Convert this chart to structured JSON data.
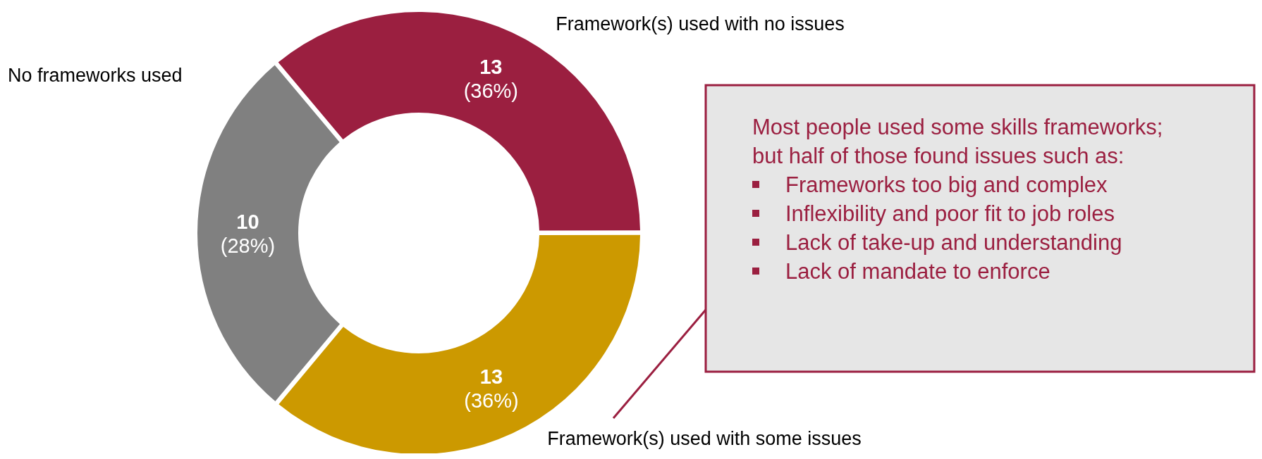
{
  "chart_data": {
    "type": "donut",
    "categories": [
      "Framework(s) used with no issues",
      "Framework(s) used with some issues",
      "No frameworks used"
    ],
    "values": [
      13,
      13,
      10
    ],
    "value_labels": [
      "13 (36%)",
      "13 (36%)",
      "10 (28%)"
    ],
    "colors": [
      "#9b1f40",
      "#cc9900",
      "#808080"
    ],
    "legend": false,
    "annotations": [
      "Most people used some skills frameworks; but half of those found issues such as:",
      "Frameworks too big and complex",
      "Inflexibility and poor fit to job roles",
      "Lack of take-up and understanding",
      "Lack of mandate to enforce"
    ]
  }
}
